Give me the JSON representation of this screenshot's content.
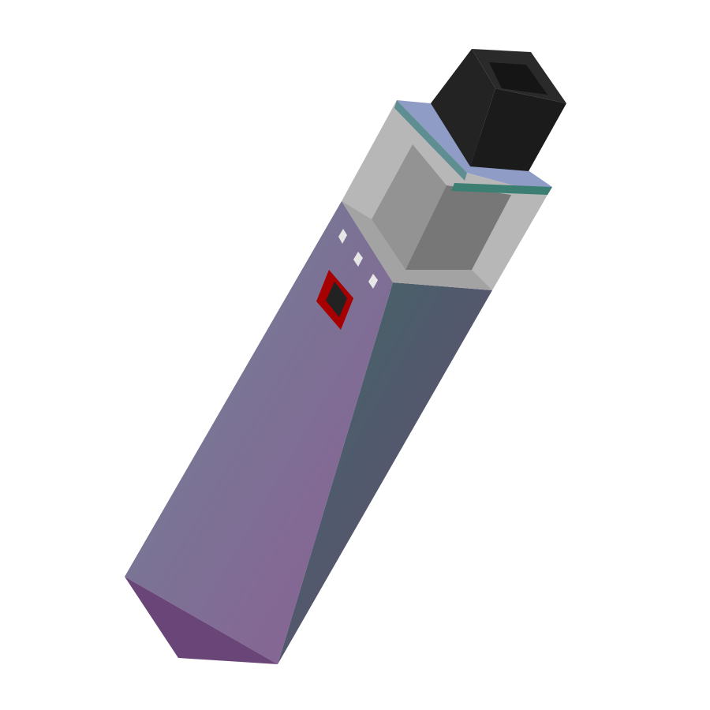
{
  "illustration": {
    "subject": "pod-vape-device",
    "colors": {
      "background": "#ffffff",
      "body_left_top": "#6e8396",
      "body_left_bottom": "#8c5e94",
      "body_right_top": "#3d6966",
      "body_right_bottom": "#6a4674",
      "bottom_edge": "#6a4678",
      "pod_light": "#b7b7b7",
      "pod_mid": "#939393",
      "pod_dark": "#777777",
      "pod_frame": "#a3a3a3",
      "collar_top": "#8f9cc6",
      "collar_left": "#5f8e92",
      "collar_right": "#3c7f72",
      "mouthpiece_front": "#1b1b1b",
      "mouthpiece_side": "#232323",
      "mouthpiece_top": "#2a2a2a",
      "mouthpiece_hole": "#151515",
      "fire_button_outer": "#a60000",
      "fire_button_inner": "#222222",
      "indicator_light": "#e6e6e6"
    },
    "icons": [
      "fire-button-icon",
      "indicator-light-icon"
    ]
  }
}
